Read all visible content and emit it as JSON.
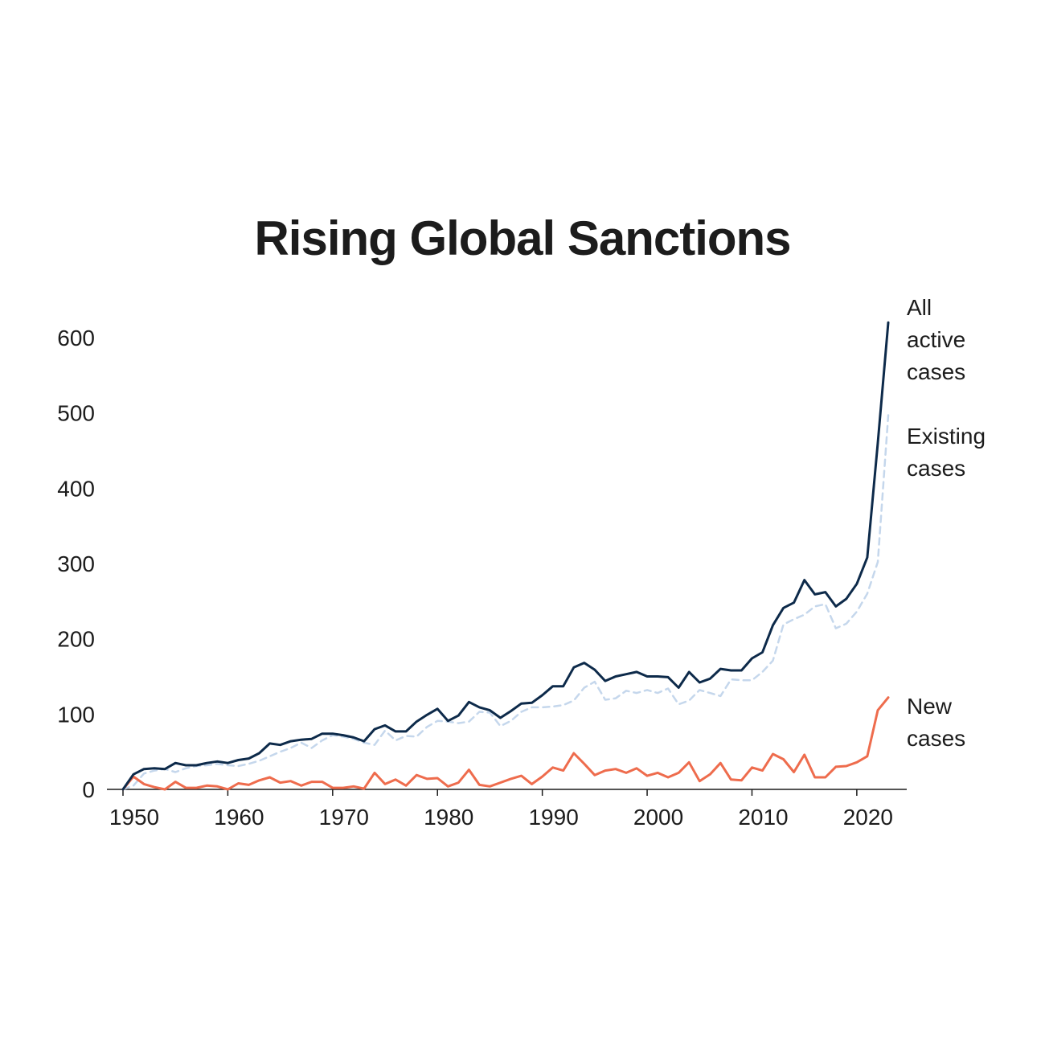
{
  "chart_data": {
    "type": "line",
    "title": "Rising Global Sanctions",
    "xlabel": "",
    "ylabel": "",
    "xlim": [
      1949,
      2025
    ],
    "ylim": [
      0,
      620
    ],
    "x_ticks": [
      1950,
      1960,
      1970,
      1980,
      1990,
      2000,
      2010,
      2020
    ],
    "y_ticks": [
      0,
      100,
      200,
      300,
      400,
      500,
      600
    ],
    "x": [
      1950,
      1951,
      1952,
      1953,
      1954,
      1955,
      1956,
      1957,
      1958,
      1959,
      1960,
      1961,
      1962,
      1963,
      1964,
      1965,
      1966,
      1967,
      1968,
      1969,
      1970,
      1971,
      1972,
      1973,
      1974,
      1975,
      1976,
      1977,
      1978,
      1979,
      1980,
      1981,
      1982,
      1983,
      1984,
      1985,
      1986,
      1987,
      1988,
      1989,
      1990,
      1991,
      1992,
      1993,
      1994,
      1995,
      1996,
      1997,
      1998,
      1999,
      2000,
      2001,
      2002,
      2003,
      2004,
      2005,
      2006,
      2007,
      2008,
      2009,
      2010,
      2011,
      2012,
      2013,
      2014,
      2015,
      2016,
      2017,
      2018,
      2019,
      2020,
      2021,
      2022,
      2023
    ],
    "series": [
      {
        "name": "All active cases",
        "label_lines": [
          "All",
          "active",
          "cases"
        ],
        "color": "#0d2a4a",
        "style": "solid",
        "values": [
          0,
          20,
          27,
          28,
          27,
          35,
          32,
          32,
          35,
          37,
          35,
          39,
          41,
          48,
          61,
          59,
          64,
          66,
          67,
          74,
          74,
          72,
          69,
          64,
          80,
          85,
          77,
          77,
          90,
          99,
          107,
          91,
          98,
          116,
          109,
          105,
          95,
          104,
          114,
          115,
          125,
          137,
          137,
          162,
          168,
          159,
          144,
          150,
          153,
          156,
          150,
          150,
          149,
          135,
          156,
          142,
          147,
          160,
          158,
          158,
          174,
          182,
          218,
          241,
          248,
          278,
          259,
          262,
          243,
          253,
          273,
          308,
          460,
          620
        ],
        "end_label_value": 620
      },
      {
        "name": "Existing cases",
        "label_lines": [
          "Existing",
          "cases"
        ],
        "color": "#c5d7ec",
        "style": "dashed",
        "values": [
          0,
          5,
          21,
          25,
          27,
          23,
          28,
          31,
          32,
          34,
          32,
          31,
          34,
          38,
          44,
          50,
          55,
          62,
          55,
          65,
          72,
          70,
          67,
          62,
          59,
          78,
          65,
          71,
          70,
          83,
          91,
          90,
          88,
          90,
          103,
          102,
          84,
          91,
          103,
          109,
          109,
          110,
          112,
          118,
          135,
          143,
          119,
          121,
          131,
          128,
          132,
          128,
          134,
          113,
          118,
          132,
          128,
          124,
          146,
          145,
          145,
          156,
          171,
          219,
          226,
          232,
          243,
          246,
          214,
          220,
          236,
          260,
          302,
          497
        ]
      },
      {
        "name": "New cases",
        "label_lines": [
          "New",
          "cases"
        ],
        "color": "#ee6c4d",
        "style": "solid",
        "values": [
          0,
          17,
          7,
          3,
          0,
          10,
          2,
          2,
          5,
          4,
          0,
          8,
          6,
          12,
          16,
          9,
          11,
          5,
          10,
          10,
          2,
          2,
          4,
          1,
          22,
          7,
          13,
          5,
          19,
          14,
          15,
          4,
          9,
          26,
          6,
          4,
          9,
          14,
          18,
          7,
          17,
          29,
          25,
          48,
          34,
          19,
          25,
          27,
          22,
          28,
          18,
          22,
          16,
          22,
          36,
          11,
          20,
          35,
          13,
          12,
          29,
          25,
          47,
          40,
          23,
          46,
          16,
          16,
          30,
          31,
          36,
          44,
          105,
          122
        ]
      }
    ],
    "grid": false,
    "legend": "direct labels at right end of lines"
  }
}
